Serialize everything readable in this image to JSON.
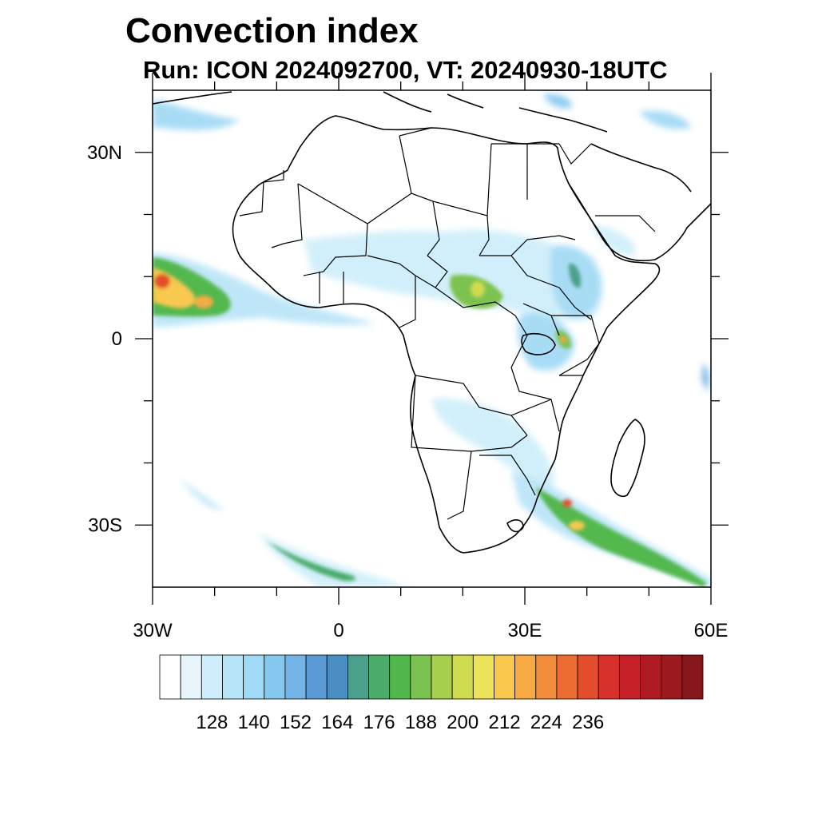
{
  "title": "Convection index",
  "subtitle": "Run: ICON 2024092700,  VT: 20240930-18UTC",
  "map": {
    "lon_range": [
      -30,
      60
    ],
    "lat_range": [
      -40,
      40
    ],
    "lon_ticks": [
      {
        "value": -30,
        "label": "30W"
      },
      {
        "value": 0,
        "label": "0"
      },
      {
        "value": 30,
        "label": "30E"
      },
      {
        "value": 60,
        "label": "60E"
      }
    ],
    "lat_ticks": [
      {
        "value": 30,
        "label": "30N"
      },
      {
        "value": 0,
        "label": "0"
      },
      {
        "value": -30,
        "label": "30S"
      }
    ],
    "minor_lon_ticks": [
      -20,
      -10,
      10,
      20,
      40,
      50
    ],
    "minor_lat_ticks": [
      20,
      10,
      -10,
      -20
    ]
  },
  "colorbar": {
    "colors": [
      "#ffffff",
      "#e8f6fc",
      "#cdeefa",
      "#b8e4f8",
      "#9fd9f5",
      "#86c8ef",
      "#73b3e6",
      "#5b9ad5",
      "#4a8ec2",
      "#4aa08a",
      "#4aac6a",
      "#52b84e",
      "#7cc250",
      "#a6cf4e",
      "#d0dc50",
      "#ece35a",
      "#f8c84f",
      "#f6aa44",
      "#f28d3c",
      "#ec6c32",
      "#e44d2c",
      "#d8302a",
      "#c51f27",
      "#b01b23",
      "#9c191e",
      "#861619"
    ],
    "labels": [
      "128",
      "140",
      "152",
      "164",
      "176",
      "188",
      "200",
      "212",
      "224",
      "236"
    ]
  },
  "convection_areas": [
    {
      "region": "Tropical Atlantic off West Africa",
      "level": "200-236"
    },
    {
      "region": "Sahel / Sudan belt",
      "level": "140-212"
    },
    {
      "region": "Ethiopian highlands",
      "level": "140-200"
    },
    {
      "region": "East African lakes",
      "level": "140-200"
    },
    {
      "region": "Mozambique channel to southwest Indian Ocean",
      "level": "140-236"
    },
    {
      "region": "South Atlantic frontal band",
      "level": "128-188"
    },
    {
      "region": "Mediterranean / Middle East",
      "level": "128-164"
    }
  ]
}
